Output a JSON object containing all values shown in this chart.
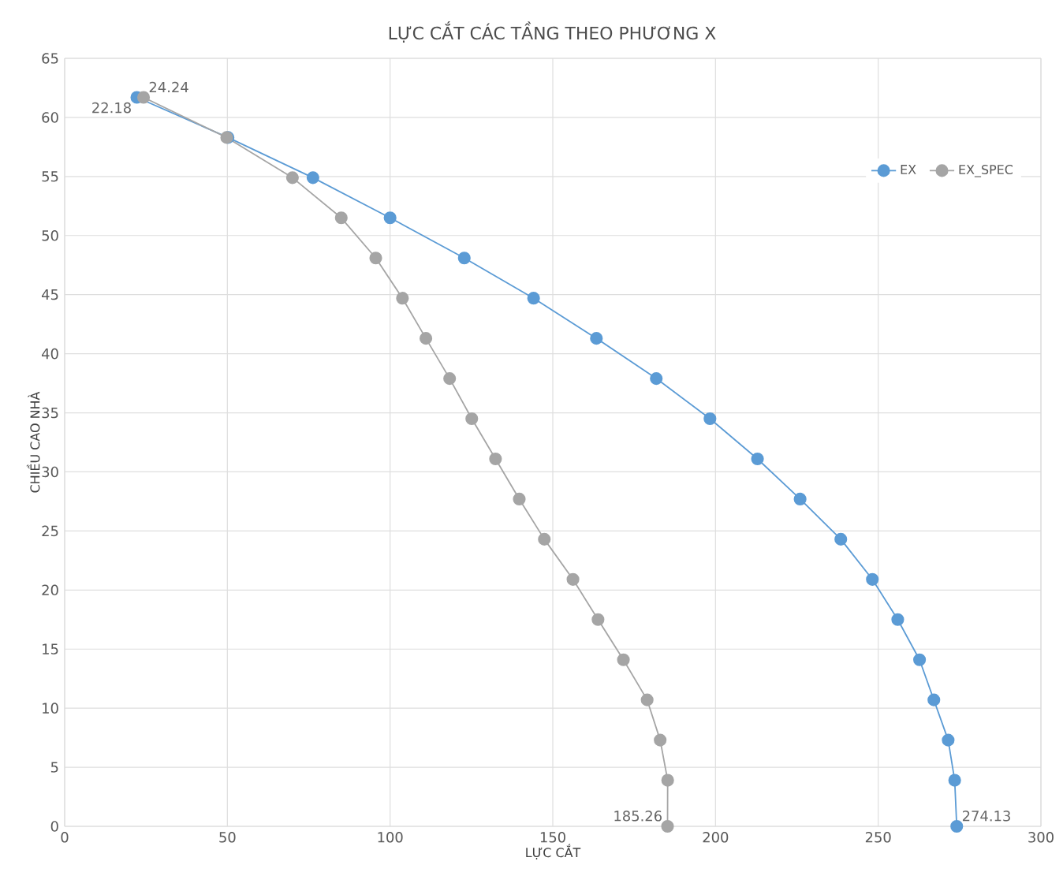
{
  "chart_data": {
    "type": "line",
    "title": "LỰC CẮT CÁC TẦNG THEO PHƯƠNG X",
    "xlabel": "LỰC CẮT",
    "ylabel": "CHIỀU CAO NHÀ",
    "xlim": [
      0,
      300
    ],
    "xticks": [
      0,
      50,
      100,
      150,
      200,
      250,
      300
    ],
    "ylim": [
      0,
      65
    ],
    "yticks": [
      0,
      5,
      10,
      15,
      20,
      25,
      30,
      35,
      40,
      45,
      50,
      55,
      60,
      65
    ],
    "grid": true,
    "legend": "right",
    "marker": "circle",
    "series": [
      {
        "name": "EX",
        "color": "#5b9bd5",
        "x": [
          274.13,
          273.5,
          271.5,
          267.1,
          262.7,
          256.0,
          248.2,
          238.5,
          226.0,
          212.9,
          198.3,
          181.8,
          163.4,
          144.1,
          122.8,
          100.0,
          76.3,
          50.2,
          22.18
        ],
        "values": [
          0,
          3.9,
          7.3,
          10.7,
          14.1,
          17.5,
          20.9,
          24.3,
          27.7,
          31.1,
          34.5,
          37.9,
          41.3,
          44.7,
          48.1,
          51.5,
          54.9,
          58.3,
          61.7
        ]
      },
      {
        "name": "EX_SPEC",
        "color": "#a5a5a5",
        "x": [
          185.26,
          185.3,
          183.0,
          179.0,
          171.7,
          163.9,
          156.2,
          147.4,
          139.7,
          132.4,
          125.1,
          118.3,
          111.0,
          103.8,
          95.6,
          85.0,
          70.0,
          49.8,
          24.24
        ],
        "values": [
          0,
          3.9,
          7.3,
          10.7,
          14.1,
          17.5,
          20.9,
          24.3,
          27.7,
          31.1,
          34.5,
          37.9,
          41.3,
          44.7,
          48.1,
          51.5,
          54.9,
          58.3,
          61.7
        ]
      }
    ],
    "annotations": [
      {
        "text": "274.13",
        "x": 274.13,
        "y": 0
      },
      {
        "text": "22.18",
        "x": 22.18,
        "y": 61.7
      },
      {
        "text": "185.26",
        "x": 185.26,
        "y": 0
      },
      {
        "text": "24.24",
        "x": 24.24,
        "y": 61.7
      }
    ]
  }
}
